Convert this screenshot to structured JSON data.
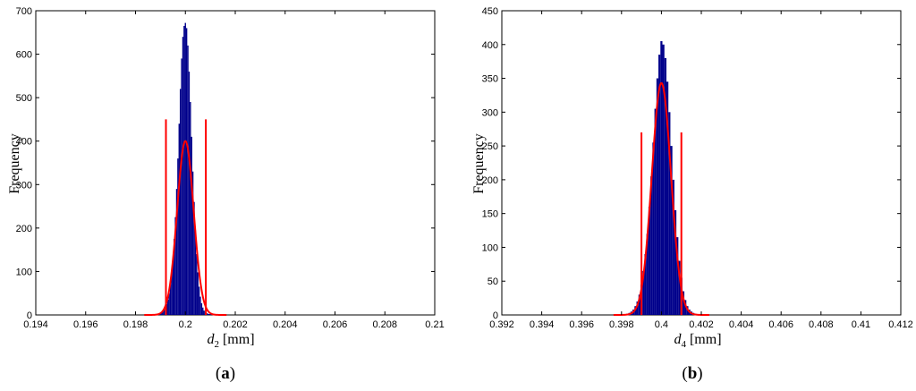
{
  "chart_data": [
    {
      "type": "bar",
      "panel_label": "a",
      "xlabel_var": "d",
      "xlabel_sub": "2",
      "xlabel_unit": " [mm]",
      "ylabel": "Frequency",
      "xlim": [
        0.194,
        0.21
      ],
      "ylim": [
        0,
        700
      ],
      "xticks": [
        "0.194",
        "0.196",
        "0.198",
        "0.2",
        "0.202",
        "0.204",
        "0.206",
        "0.208",
        "0.21"
      ],
      "yticks": [
        "0",
        "100",
        "200",
        "300",
        "400",
        "500",
        "600",
        "700"
      ],
      "bar_color": "#00008b",
      "curve_color": "#ff0000",
      "hist": {
        "bin_width": 5e-05,
        "centers": [
          0.19895,
          0.199,
          0.19905,
          0.1991,
          0.19915,
          0.1992,
          0.19925,
          0.1993,
          0.19935,
          0.1994,
          0.19945,
          0.1995,
          0.19955,
          0.1996,
          0.19965,
          0.1997,
          0.19975,
          0.1998,
          0.19985,
          0.1999,
          0.19995,
          0.2,
          0.20005,
          0.2001,
          0.20015,
          0.2002,
          0.20025,
          0.2003,
          0.20035,
          0.2004,
          0.20045,
          0.2005,
          0.20055,
          0.2006,
          0.20065,
          0.2007,
          0.20075,
          0.2008,
          0.20085,
          0.2009,
          0.20095,
          0.201,
          0.20105
        ],
        "values": [
          2,
          3,
          5,
          8,
          12,
          18,
          25,
          35,
          50,
          70,
          95,
          130,
          175,
          225,
          290,
          360,
          440,
          520,
          590,
          640,
          665,
          672,
          660,
          620,
          560,
          490,
          410,
          330,
          260,
          195,
          140,
          98,
          65,
          42,
          27,
          17,
          10,
          6,
          4,
          3,
          2,
          2,
          1
        ]
      },
      "fit_curve": {
        "mean": 0.2,
        "std": 0.00033,
        "peak": 400
      },
      "limit_lines": {
        "x": [
          0.19922,
          0.20082
        ],
        "height": 450
      }
    },
    {
      "type": "bar",
      "panel_label": "b",
      "xlabel_var": "d",
      "xlabel_sub": "4",
      "xlabel_unit": " [mm]",
      "ylabel": "Frequency",
      "xlim": [
        0.392,
        0.412
      ],
      "ylim": [
        0,
        450
      ],
      "xticks": [
        "0.392",
        "0.394",
        "0.396",
        "0.398",
        "0.4",
        "0.402",
        "0.404",
        "0.406",
        "0.408",
        "0.41",
        "0.412"
      ],
      "yticks": [
        "0",
        "50",
        "100",
        "150",
        "200",
        "250",
        "300",
        "350",
        "400",
        "450"
      ],
      "bar_color": "#00008b",
      "curve_color": "#ff0000",
      "hist": {
        "bin_width": 0.0001,
        "centers": [
          0.3983,
          0.3984,
          0.3985,
          0.3986,
          0.3987,
          0.3988,
          0.3989,
          0.399,
          0.3991,
          0.3992,
          0.3993,
          0.3994,
          0.3995,
          0.3996,
          0.3997,
          0.3998,
          0.3999,
          0.4,
          0.4001,
          0.4002,
          0.4003,
          0.4004,
          0.4005,
          0.4006,
          0.4007,
          0.4008,
          0.4009,
          0.401,
          0.4011,
          0.4012,
          0.4013,
          0.4014,
          0.4015,
          0.4016,
          0.4017
        ],
        "values": [
          2,
          3,
          5,
          8,
          13,
          20,
          30,
          45,
          65,
          90,
          120,
          160,
          205,
          255,
          305,
          350,
          385,
          405,
          400,
          380,
          345,
          300,
          250,
          200,
          155,
          115,
          80,
          55,
          35,
          22,
          13,
          8,
          5,
          3,
          2
        ]
      },
      "fit_curve": {
        "mean": 0.4,
        "std": 0.00048,
        "peak": 343
      },
      "limit_lines": {
        "x": [
          0.399,
          0.401
        ],
        "height": 270
      }
    }
  ]
}
